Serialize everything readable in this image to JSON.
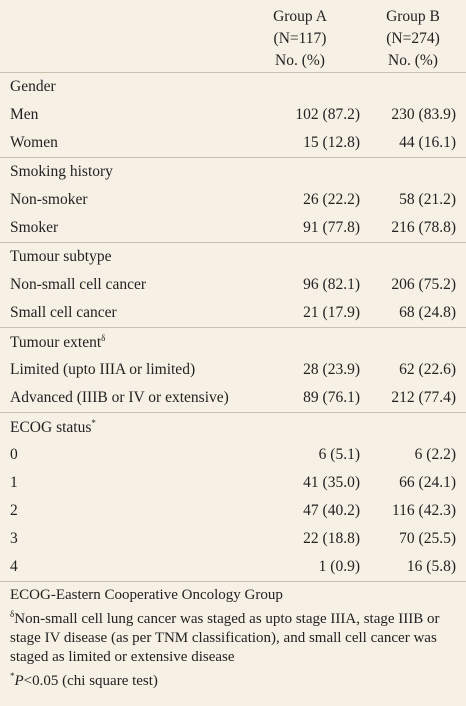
{
  "header": {
    "columns": [
      {
        "name": "Group A",
        "n": "(N=117)",
        "unit": "No. (%)"
      },
      {
        "name": "Group B",
        "n": "(N=274)",
        "unit": "No. (%)"
      }
    ]
  },
  "sections": [
    {
      "title": "Gender",
      "rows": [
        [
          "Men",
          "102 (87.2)",
          "230 (83.9)"
        ],
        [
          "Women",
          "15 (12.8)",
          "44 (16.1)"
        ]
      ]
    },
    {
      "title": "Smoking history",
      "rows": [
        [
          "Non-smoker",
          "26 (22.2)",
          "58 (21.2)"
        ],
        [
          "Smoker",
          "91 (77.8)",
          "216 (78.8)"
        ]
      ]
    },
    {
      "title": "Tumour subtype",
      "rows": [
        [
          "Non-small cell cancer",
          "96 (82.1)",
          "206 (75.2)"
        ],
        [
          "Small cell cancer",
          "21 (17.9)",
          "68 (24.8)"
        ]
      ]
    },
    {
      "title": "Tumour extent",
      "sup": "δ",
      "rows": [
        [
          "Limited (upto IIIA or limited)",
          "28 (23.9)",
          "62 (22.6)"
        ],
        [
          "Advanced (IIIB or IV or extensive)",
          "89 (76.1)",
          "212 (77.4)"
        ]
      ]
    },
    {
      "title": "ECOG status",
      "sup": "*",
      "rows": [
        [
          "0",
          "6 (5.1)",
          "6 (2.2)"
        ],
        [
          "1",
          "41 (35.0)",
          "66 (24.1)"
        ],
        [
          "2",
          "47 (40.2)",
          "116 (42.3)"
        ],
        [
          "3",
          "22 (18.8)",
          "70 (25.5)"
        ],
        [
          "4",
          "1 (0.9)",
          "16 (5.8)"
        ]
      ]
    }
  ],
  "footnotes": [
    {
      "text": "ECOG-Eastern Cooperative Oncology Group"
    },
    {
      "sup": "δ",
      "text": "Non-small cell lung cancer was staged as upto stage IIIA, stage IIIB or stage IV disease (as per TNM classification), and small cell cancer was staged as limited or extensive disease"
    },
    {
      "sup": "*",
      "italic": "P",
      "text": "<0.05 (chi square test)"
    }
  ]
}
